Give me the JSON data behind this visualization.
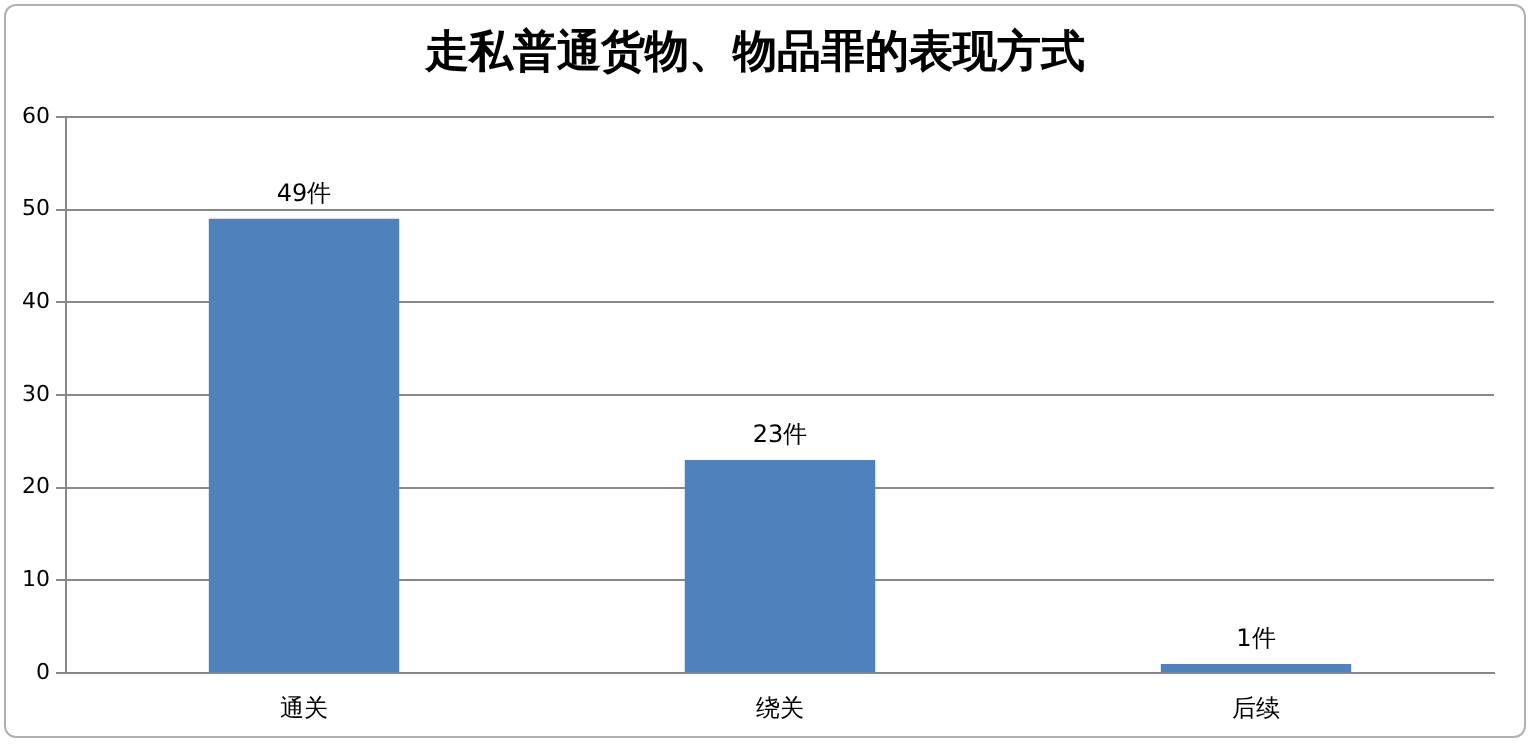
{
  "chart_data": {
    "type": "bar",
    "title": "走私普通货物、物品罪的表现方式",
    "categories": [
      "通关",
      "绕关",
      "后续"
    ],
    "values": [
      49,
      23,
      1
    ],
    "value_labels": [
      "49件",
      "23件",
      "1件"
    ],
    "color": "#4f81bd",
    "ylim": [
      0,
      60
    ],
    "yticks": [
      0,
      10,
      20,
      30,
      40,
      50,
      60
    ],
    "grid": "y",
    "legend": false
  }
}
